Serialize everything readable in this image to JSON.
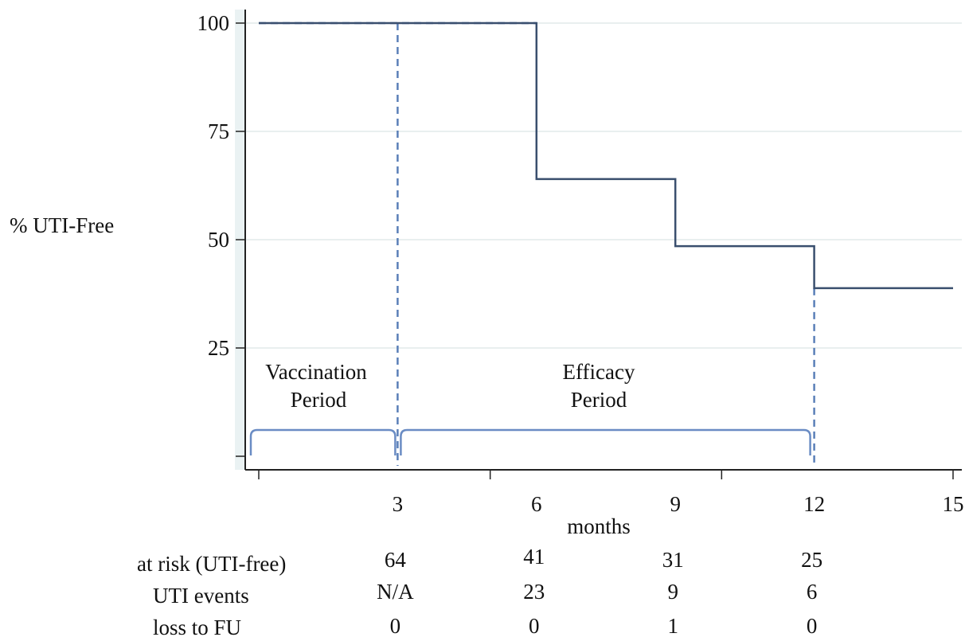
{
  "chart_data": {
    "type": "line",
    "ylabel": "% UTI-Free",
    "xlabel": "months",
    "ylim": [
      0,
      100
    ],
    "xlim": [
      0,
      15
    ],
    "y_ticks": [
      100,
      75,
      50,
      25
    ],
    "x_ticks": [
      3,
      6,
      9,
      12,
      15
    ],
    "grid": true,
    "series": [
      {
        "values_step": [
          [
            0,
            100
          ],
          [
            6,
            100
          ],
          [
            6,
            64
          ],
          [
            9,
            64
          ],
          [
            9,
            48.5
          ],
          [
            12,
            48.5
          ],
          [
            12,
            38.8
          ],
          [
            15,
            38.8
          ]
        ]
      }
    ],
    "reference_lines": [
      {
        "orientation": "vertical",
        "x": 3,
        "style": "dashed"
      },
      {
        "orientation": "vertical",
        "x": 12,
        "style": "dashed"
      },
      {
        "orientation": "horizontal",
        "y": 100,
        "x_from": 0,
        "x_to": 6,
        "style": "dashed"
      }
    ],
    "periods": [
      {
        "line1": "Vaccination",
        "line2": "Period",
        "x_from": 0,
        "x_to": 3
      },
      {
        "line1": "Efficacy",
        "line2": "Period",
        "x_from": 3,
        "x_to": 12
      }
    ],
    "risk_table": {
      "rows": [
        {
          "label": "at risk (UTI-free)",
          "values": [
            "64",
            "41",
            "31",
            "25"
          ]
        },
        {
          "label": "UTI events",
          "values": [
            "N/A",
            "23",
            "9",
            "6"
          ]
        },
        {
          "label": "loss to FU",
          "values": [
            "0",
            "0",
            "1",
            "0"
          ]
        }
      ],
      "columns_x": [
        3,
        6,
        9,
        12
      ]
    },
    "colors": {
      "line": "#3a4f6e",
      "reference": "#5a7fb8",
      "bracket": "#6a8cc4",
      "grid": "#e2eaea",
      "plot_bg": "#eaf2f3"
    }
  }
}
